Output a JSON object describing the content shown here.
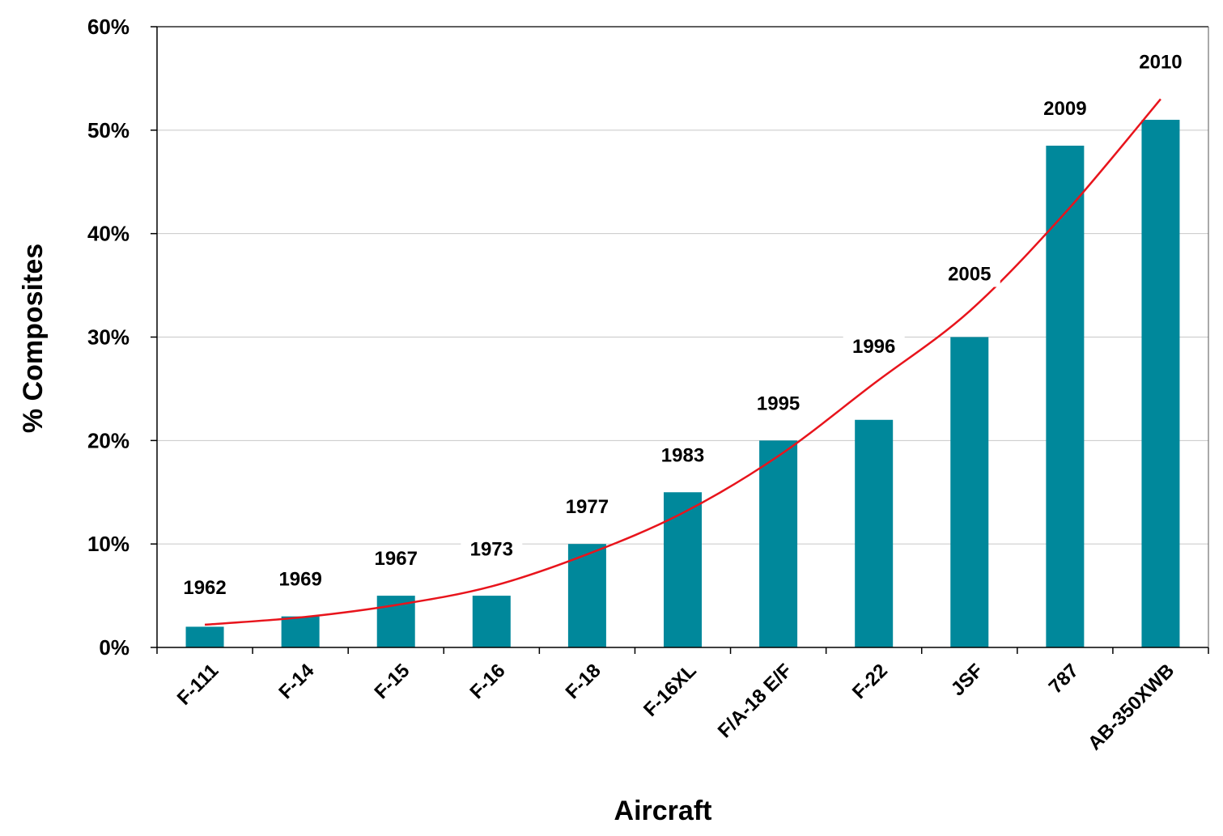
{
  "chart_data": {
    "type": "bar",
    "title": "",
    "xlabel": "Aircraft",
    "ylabel": "% Composites",
    "ylim": [
      0,
      60
    ],
    "y_ticks": [
      "0%",
      "10%",
      "20%",
      "30%",
      "40%",
      "50%",
      "60%"
    ],
    "y_tick_values": [
      0,
      10,
      20,
      30,
      40,
      50,
      60
    ],
    "grid": true,
    "categories": [
      "F-111",
      "F-14",
      "F-15",
      "F-16",
      "F-18",
      "F-16XL",
      "F/A-18 E/F",
      "F-22",
      "JSF",
      "787",
      "AB-350XWB"
    ],
    "values": [
      2,
      3,
      5,
      5,
      10,
      15,
      20,
      22,
      30,
      48.5,
      51
    ],
    "year_labels": [
      "1962",
      "1969",
      "1967",
      "1973",
      "1977",
      "1983",
      "1995",
      "1996",
      "2005",
      "2009",
      "2010"
    ],
    "trendline": {
      "type": "exponential",
      "color": "#e8141c",
      "values": [
        2.2,
        2.9,
        4.1,
        5.9,
        9.0,
        13.0,
        18.5,
        25.5,
        32.5,
        42.0,
        53.0
      ]
    },
    "colors": {
      "bar": "#00889b",
      "grid": "#c8c8c8",
      "trend": "#e8141c"
    }
  }
}
